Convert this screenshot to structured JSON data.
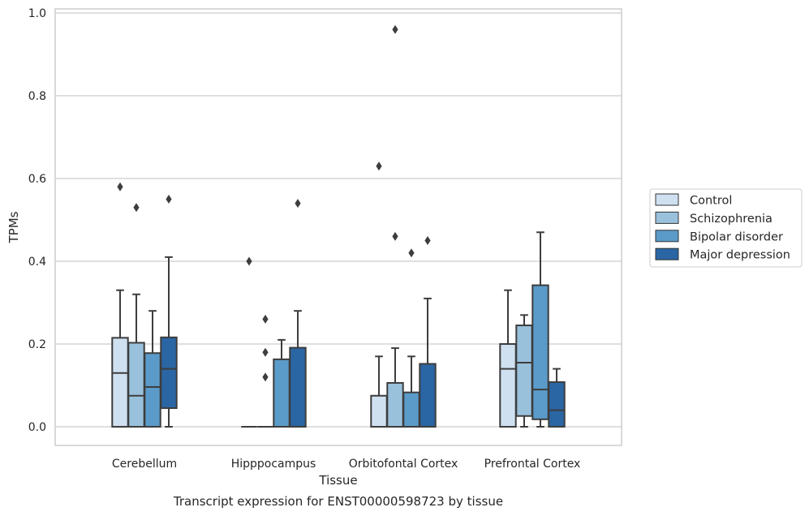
{
  "chart_data": {
    "type": "boxplot",
    "title": "",
    "caption": "Transcript expression for ENST00000598723 by tissue",
    "xlabel": "Tissue",
    "ylabel": "TPMs",
    "ylim": [
      -0.045,
      1.01
    ],
    "yticks": [
      0.0,
      0.2,
      0.4,
      0.6,
      0.8,
      1.0
    ],
    "ytick_labels": [
      "0.0",
      "0.2",
      "0.4",
      "0.6",
      "0.8",
      "1.0"
    ],
    "grid": "horizontal",
    "legend_position": "right",
    "categories": [
      "Cerebellum",
      "Hipppocampus",
      "Orbitofontal Cortex",
      "Prefrontal Cortex"
    ],
    "series": [
      {
        "name": "Control",
        "color": "#cfe0f1",
        "boxes": [
          {
            "q1": 0.0,
            "median": 0.13,
            "q3": 0.215,
            "whisker_low": 0.0,
            "whisker_high": 0.33,
            "outliers": [
              0.58
            ]
          },
          {
            "q1": 0.0,
            "median": 0.0,
            "q3": 0.0,
            "whisker_low": 0.0,
            "whisker_high": 0.0,
            "outliers": [
              0.4
            ]
          },
          {
            "q1": 0.0,
            "median": 0.0,
            "q3": 0.075,
            "whisker_low": 0.0,
            "whisker_high": 0.17,
            "outliers": [
              0.63
            ]
          },
          {
            "q1": 0.0,
            "median": 0.14,
            "q3": 0.2,
            "whisker_low": 0.0,
            "whisker_high": 0.33,
            "outliers": []
          }
        ]
      },
      {
        "name": "Schizophrenia",
        "color": "#9ac1dc",
        "boxes": [
          {
            "q1": 0.0,
            "median": 0.075,
            "q3": 0.203,
            "whisker_low": 0.0,
            "whisker_high": 0.32,
            "outliers": [
              0.53
            ]
          },
          {
            "q1": 0.0,
            "median": 0.0,
            "q3": 0.0,
            "whisker_low": 0.0,
            "whisker_high": 0.0,
            "outliers": [
              0.26,
              0.18,
              0.12
            ]
          },
          {
            "q1": 0.0,
            "median": 0.0,
            "q3": 0.106,
            "whisker_low": 0.0,
            "whisker_high": 0.19,
            "outliers": [
              0.96,
              0.46
            ]
          },
          {
            "q1": 0.026,
            "median": 0.155,
            "q3": 0.245,
            "whisker_low": 0.0,
            "whisker_high": 0.27,
            "outliers": []
          }
        ]
      },
      {
        "name": "Bipolar disorder",
        "color": "#5a9bc9",
        "boxes": [
          {
            "q1": 0.0,
            "median": 0.096,
            "q3": 0.178,
            "whisker_low": 0.0,
            "whisker_high": 0.28,
            "outliers": []
          },
          {
            "q1": 0.0,
            "median": 0.0,
            "q3": 0.163,
            "whisker_low": 0.0,
            "whisker_high": 0.21,
            "outliers": []
          },
          {
            "q1": 0.0,
            "median": 0.0,
            "q3": 0.083,
            "whisker_low": 0.0,
            "whisker_high": 0.17,
            "outliers": [
              0.42
            ]
          },
          {
            "q1": 0.018,
            "median": 0.09,
            "q3": 0.342,
            "whisker_low": 0.0,
            "whisker_high": 0.47,
            "outliers": []
          }
        ]
      },
      {
        "name": "Major depression",
        "color": "#2a66a4",
        "boxes": [
          {
            "q1": 0.045,
            "median": 0.14,
            "q3": 0.216,
            "whisker_low": 0.0,
            "whisker_high": 0.41,
            "outliers": [
              0.55
            ]
          },
          {
            "q1": 0.0,
            "median": 0.0,
            "q3": 0.191,
            "whisker_low": 0.0,
            "whisker_high": 0.28,
            "outliers": [
              0.54
            ]
          },
          {
            "q1": 0.0,
            "median": 0.0,
            "q3": 0.152,
            "whisker_low": 0.0,
            "whisker_high": 0.31,
            "outliers": [
              0.45
            ]
          },
          {
            "q1": 0.0,
            "median": 0.04,
            "q3": 0.108,
            "whisker_low": 0.0,
            "whisker_high": 0.14,
            "outliers": []
          }
        ]
      }
    ]
  }
}
